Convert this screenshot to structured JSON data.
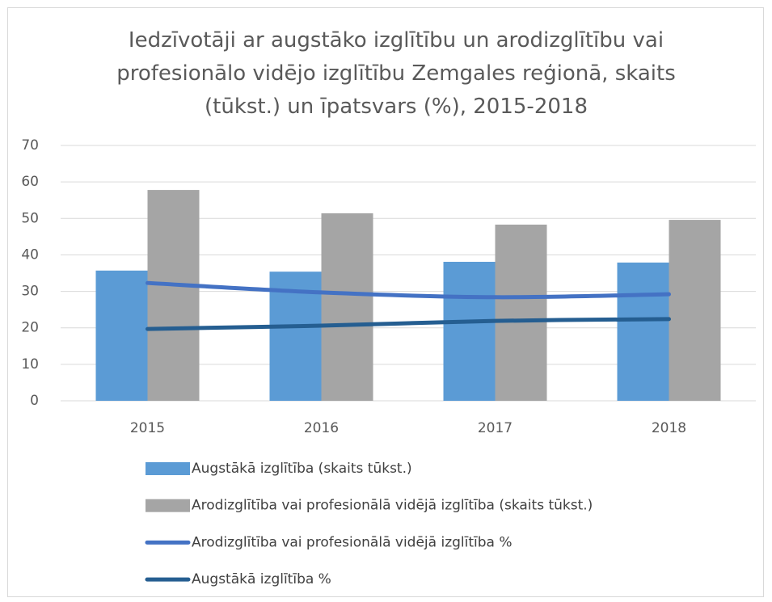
{
  "chart_data": {
    "type": "bar",
    "title": "Iedzīvotāji ar augstāko izglītību un arodizglītību vai profesionālo vidējo izglītību Zemgales reģionā, skaits (tūkst.) un īpatsvars (%), 2015-2018",
    "categories": [
      "2015",
      "2016",
      "2017",
      "2018"
    ],
    "series": [
      {
        "name": "Augstākā izglītība (skaits tūkst.)",
        "type": "bar",
        "color": "#5b9bd5",
        "values": [
          35.7,
          35.4,
          38.1,
          37.9
        ]
      },
      {
        "name": "Arodizglītība vai profesionālā vidējā izglītība (skaits tūkst.)",
        "type": "bar",
        "color": "#a5a5a5",
        "values": [
          57.8,
          51.4,
          48.3,
          49.6
        ]
      },
      {
        "name": "Arodizglītība vai profesionālā vidējā izglītība %",
        "type": "line",
        "color": "#4472c4",
        "values": [
          32.3,
          29.7,
          28.4,
          29.2
        ]
      },
      {
        "name": "Augstākā izglītība %",
        "type": "line",
        "color": "#255e91",
        "values": [
          19.7,
          20.6,
          21.9,
          22.4
        ]
      }
    ],
    "ylim": [
      0,
      70
    ],
    "yticks": [
      0,
      10,
      20,
      30,
      40,
      50,
      60,
      70
    ],
    "grid": true
  }
}
